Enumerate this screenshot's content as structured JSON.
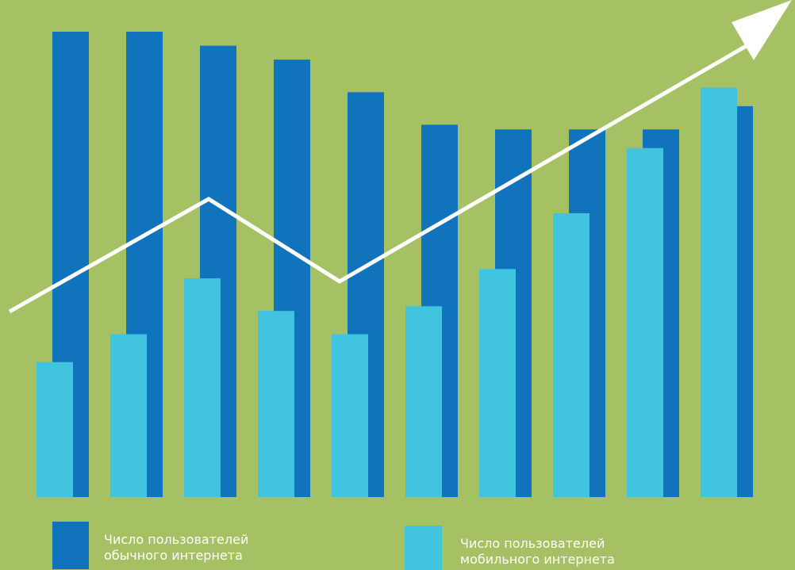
{
  "background": "#a6c064",
  "chart_data": {
    "type": "bar",
    "title": "",
    "xlabel": "",
    "ylabel": "",
    "categories": [
      "",
      "",
      "",
      "",
      "",
      "",
      "",
      "",
      "",
      ""
    ],
    "ylim": [
      0,
      100
    ],
    "series": [
      {
        "name": "Число пользователей обычного интернета",
        "color": "#1173bb",
        "values": [
          100,
          100,
          97,
          94,
          87,
          80,
          79,
          79,
          79,
          84
        ]
      },
      {
        "name": "Число пользователей мобильного интернета",
        "color": "#40c4e0",
        "values": [
          29,
          35,
          47,
          40,
          35,
          41,
          49,
          61,
          75,
          88
        ]
      }
    ],
    "trend": {
      "color": "#ffffff",
      "direction": "up"
    },
    "legend": {
      "position": "bottom",
      "items": [
        {
          "line1": "Число пользователей",
          "line2": "обычного интернета",
          "color": "#1173bb"
        },
        {
          "line1": "Число пользователей",
          "line2": "мобильного интернета",
          "color": "#40c4e0"
        }
      ]
    }
  }
}
